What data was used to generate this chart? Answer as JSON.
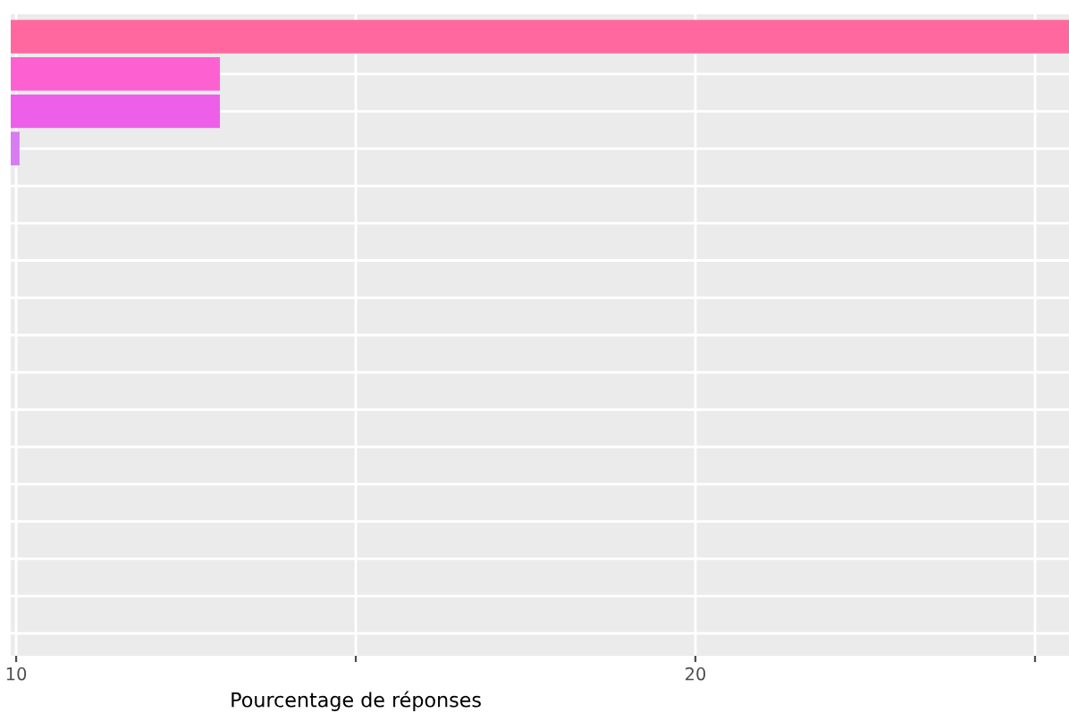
{
  "chart_data": {
    "type": "bar",
    "orientation": "horizontal",
    "xlabel": "Pourcentage de réponses",
    "categories": [
      null,
      null,
      null,
      null,
      null,
      null,
      null,
      null,
      null,
      null,
      null,
      null,
      null,
      null,
      null,
      null,
      null
    ],
    "values": [
      25.5,
      13.0,
      13.0,
      10.05,
      null,
      null,
      null,
      null,
      null,
      null,
      null,
      null,
      null,
      null,
      null,
      null,
      null
    ],
    "colors": [
      "#ff689f",
      "#fd61d1",
      "#ed5fe8",
      "#d77cf2",
      "#c77cff",
      "#b385ff",
      "#9f8cff",
      "#8794ff",
      "#619cff",
      "#00a9ff",
      "#00b4f0",
      "#00bcd8",
      "#00c0b8",
      "#00c19a",
      "#00be70",
      "#00ba38",
      "#7cae00"
    ],
    "xlim": [
      9.92,
      25.5
    ],
    "xticks": [
      10,
      {
        "value": 15,
        "label": null
      },
      20,
      {
        "value": 25,
        "label": null
      }
    ],
    "grid": true,
    "tick_labels": "x"
  }
}
